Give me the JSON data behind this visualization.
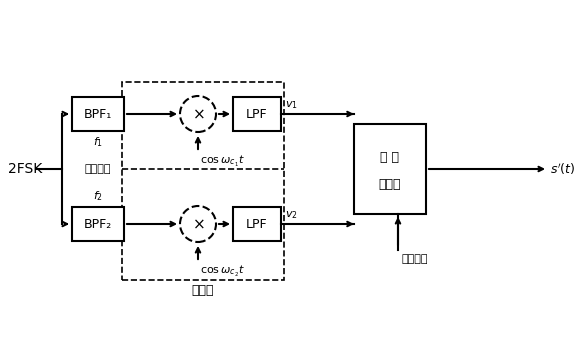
{
  "bg_color": "#ffffff",
  "input_label": "2FSK",
  "bpf1_label": "BPF₁",
  "bpf2_label": "BPF₂",
  "lpf_label": "LPF",
  "sampler_line1": "抽 样",
  "sampler_line2": "判决器",
  "cos1_label": "$\\cos\\omega_{c_1}t$",
  "cos2_label": "$\\cos\\omega_{c_2}t$",
  "v1_label": "$v_1$",
  "v2_label": "$v_2$",
  "f1_label": "$f_1$",
  "f2_label": "$f_2$",
  "center_freq_label": "中心频率",
  "decoder_label": "解调器",
  "timing_label": "定时脉冲",
  "output_label": "$s'(t)$",
  "lw": 1.2,
  "lw_thick": 1.5
}
